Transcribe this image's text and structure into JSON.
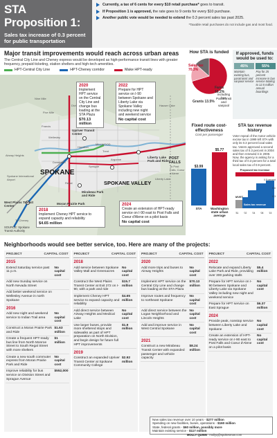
{
  "header": {
    "title_line1": "STA Proposition 1:",
    "subtitle": "Sales tax increase of 0.3 percent for public transportation",
    "bullets": [
      {
        "lead": "Currently, a tax of 6 cents for every $10 retail purchase*",
        "rest": " goes to transit."
      },
      {
        "lead": "If Proposition 1 is approved,",
        "rest": " the rate goes to 9 cents for every $10 purchase."
      },
      {
        "lead": "Another public vote would be needed to extend",
        "rest": " the 0.3 percent sales tax past 2025."
      }
    ],
    "footnote": "*Taxable retail purchases do not include gas and most food."
  },
  "transit": {
    "title": "Major transit improvements would reach across urban areas",
    "description": "The Central City Line and Cheney express would be developed as high-performance transit lines with greater frequency, prepaid ticketing, station shelters and high-tech amenities.",
    "legend": [
      {
        "label": "HPT-Central City Line",
        "color": "#4caf50"
      },
      {
        "label": "HPT-Cheney corridor",
        "color": "#1a66b3"
      },
      {
        "label": "Make HPT-ready",
        "color": "#c8102e"
      }
    ],
    "callouts": [
      {
        "year": "2020",
        "text": "Implement HPT service on the Central City Line and change bus loading at the STA Plaza",
        "cost": "$70.13 million"
      },
      {
        "year": "2022",
        "text": "Prepare for HPT service on I-90 between Spokane and Liberty Lake via Spokane Valley including new night and weekend service",
        "cost": "No capital cost"
      },
      {
        "year": "2018",
        "text": "Implement Cheney HPT service to expand capacity and reliability",
        "cost": "$4.65 million"
      },
      {
        "year": "2024",
        "text": "Create an extension of HPT-ready service on I-90 east to Post Falls and Coeur d'Alene on a pilot basis",
        "cost": "No capital cost"
      }
    ],
    "places": {
      "spokane": "SPOKANE",
      "spokane_valley": "SPOKANE VALLEY",
      "liberty_lake_park": "Liberty Lake Park and Ride",
      "post_falls": "POST FALLS",
      "to_post_falls": "To Post Falls, Coeur d'Alene",
      "mirabeau": "Mirabeau Park and Ride",
      "moran": "Moran Prairie Park and Ride",
      "west_plains": "West Plains Transit Center",
      "upriver": "Upriver Transit Center",
      "millwood": "MILLWOOD",
      "airport": "Spokane International Airport",
      "cheney": "To Cheney",
      "liberty_lake": "Liberty Lake",
      "hauser_lake": "Hauser Lake",
      "downtown": "Downtown",
      "argonne": "Argonne",
      "sprague": "Sprague",
      "division": "Division",
      "trent": "Trent",
      "hamilton": "Hamilton",
      "wellesley": "Wellesley",
      "francis": "Francis",
      "nine_mile": "Nine Mile",
      "five_mile": "Five Mile",
      "airway_heights": "Airway Heights",
      "regal": "Regal"
    },
    "source": "SOURCE: Spokane Transit Authority"
  },
  "grow": {
    "title": "How STA is funded",
    "slices": [
      {
        "label": "Sales tax",
        "pct": "70.3%",
        "value": 70.3,
        "color": "#c8102e"
      },
      {
        "label": "Fares",
        "pct": "16.2%",
        "value": 16.2,
        "color": "#f0a6b2"
      },
      {
        "label": "Grants",
        "pct": "13.5%",
        "value": 13.5,
        "color": "#6b6b6d"
      }
    ],
    "fare_note": "including bus",
    "fare_note2": "Paratransit and vanpool"
  },
  "approved": {
    "title": "If approved, funds would be used to:",
    "bars": [
      {
        "pct": "45%",
        "color": "#7aa7a6"
      },
      {
        "pct": "55%",
        "color": "#4d8c8b"
      }
    ],
    "desc": [
      "Maintain existing bus, paratransit and vanpool service",
      "Pay for 25 percent increase in bus service totaling to 12.5 million annual boardings"
    ]
  },
  "fixed": {
    "title": "Fixed route cost-effectiveness",
    "subtitle": "Cost per passenger",
    "bars": [
      {
        "label": "STA",
        "value": 3.99,
        "display": "$3.99",
        "color": "#1a66b3"
      },
      {
        "label": "Washington state urban average",
        "value": 5.77,
        "display": "$5.77",
        "color": "#c8102e"
      }
    ]
  },
  "tax_history": {
    "title": "STA tax revenue history",
    "text": "Voter repeal of the motor vehicle excise tax in 1999 left STA with only its 0.3 percent local sales tax. Voters approved a second sales tax of 0.3 percent in 2004 and then renewed it in 2008. Now, the agency is asking for a third tax of 0.3 percent for a total local sales tax of 0.9 percent.",
    "labels": {
      "proposed": "Proposed tax increase",
      "mvet": "MVET",
      "sales": "Sales tax revenue"
    },
    "y_ticks": [
      "0.9 percent",
      "0.6",
      "0.3"
    ],
    "x_ticks": [
      "'81",
      "'02",
      "'04",
      "'08",
      "'15"
    ]
  },
  "neighborhoods": {
    "title": "Neighborhoods would see better service, too. Here are many of the projects:",
    "col_project": "PROJECT",
    "col_cost": "CAPITAL COST",
    "columns": [
      [
        {
          "year": "2015",
          "rows": [
            {
              "proj": "Extend Saturday service past 11 p.m.",
              "cost": "No capital cost"
            },
            {
              "proj": "Add new Sunday service on North Nevada Street",
              "cost": ""
            },
            {
              "proj": "Add better weekend service on Wellesley Avenue in north Spokane",
              "cost": ""
            }
          ]
        },
        {
          "year": "2016",
          "rows": [
            {
              "proj": "Add new night and weekend service to Indian Trail area",
              "cost": "No capital cost"
            },
            {
              "proj": "Construct a Moran Prairie Park and Ride",
              "cost": "$1.63 million"
            },
            {
              "proj": "Create a frequent HPT-ready bus line from North Monroe Street to South Regal Street with more shelters",
              "cost": "$1 million"
            },
            {
              "proj": "Create a new south commuter express from Moran Prairie Park and Ride",
              "cost": "No capital cost"
            },
            {
              "proj": "Improve reliability for bus service on Division Street and Sprague Avenue",
              "cost": "$552,000"
            }
          ]
        }
      ],
      [
        {
          "year": "2018",
          "rows": [
            {
              "proj": "Add service between Spokane Valley Mall and Greenacres",
              "cost": "No capital cost"
            },
            {
              "proj": "Construct the West Plains Transit Center at Exit 272 on I-90, with a park and ride",
              "cost": "$15.7 million"
            },
            {
              "proj": "Implement Cheney HPT service to expand capacity and reliability",
              "cost": "$4.65 million"
            },
            {
              "proj": "Add direct service between Airway Heights and Medical Lake",
              "cost": "No capital cost"
            },
            {
              "proj": "Use larger buses, provide more sheltered stops and sidewalks as part of HPT preparation on North Division, and begin design for future full HPT improvements",
              "cost": "$1.9 million"
            }
          ]
        },
        {
          "year": "2019",
          "rows": [
            {
              "proj": "Construct an expanded Upriver Transit Center at Spokane Community College",
              "cost": "$2.92 million"
            }
          ]
        }
      ],
      [
        {
          "year": "2020",
          "rows": [
            {
              "proj": "Add more trips and buses to Airway Heights",
              "cost": "No capital cost"
            },
            {
              "proj": "Implement HPT service on the Central City Line and change bus loading at the STA Plaza",
              "cost": "$70.13 million"
            },
            {
              "proj": "Improve routes and frequency to northeast Spokane",
              "cost": "No capital cost"
            },
            {
              "proj": "Add direct service between the Logan Neighborhood and Lincoln Heights",
              "cost": "No capital cost"
            },
            {
              "proj": "Add and improve service in West Central Spokane",
              "cost": "No capital cost"
            }
          ]
        },
        {
          "year": "2021",
          "rows": [
            {
              "proj": "Construct a new Mirabeau Transit Center with expanded passenger and vehicle capacity",
              "cost": "$8.24 million"
            }
          ]
        }
      ],
      [
        {
          "year": "2022",
          "rows": [
            {
              "proj": "Relocate and expand Liberty Lake Park and Ride, providing over 300 parking stalls",
              "cost": "$5.4 million"
            },
            {
              "proj": "Prepare for HPT service on I-90 between Spokane and Liberty Lake via Spokane Valley including new night and weekend service",
              "cost": "No capital cost"
            },
            {
              "proj": "Prepare for HPT service on East Sprague",
              "cost": "$6.37 million"
            }
          ]
        },
        {
          "year": "2024",
          "rows": [
            {
              "proj": "Provide peak, nonstop service between Liberty Lake and Spokane",
              "cost": "No capital cost"
            },
            {
              "proj": "Create an extension of HPT-ready service on I-90 east to Post Falls and Coeur d'Alene on a pilot basis",
              "cost": "No capital cost"
            }
          ]
        }
      ]
    ]
  },
  "revenue": {
    "lines": [
      {
        "label": "New sales tax revenue over 10 years",
        "value": "$277 million"
      },
      {
        "label": "Spending on new facilities, buses, operations",
        "value": "$160 million"
      },
      {
        "label": "State, federal grants",
        "value": "$60 million, possibly more"
      },
      {
        "label": "Maintain existing service",
        "value": "$117 million"
      }
    ]
  },
  "credit": {
    "author": "MOLLY QUINN",
    "email": "mollyq@spokesman.com"
  }
}
